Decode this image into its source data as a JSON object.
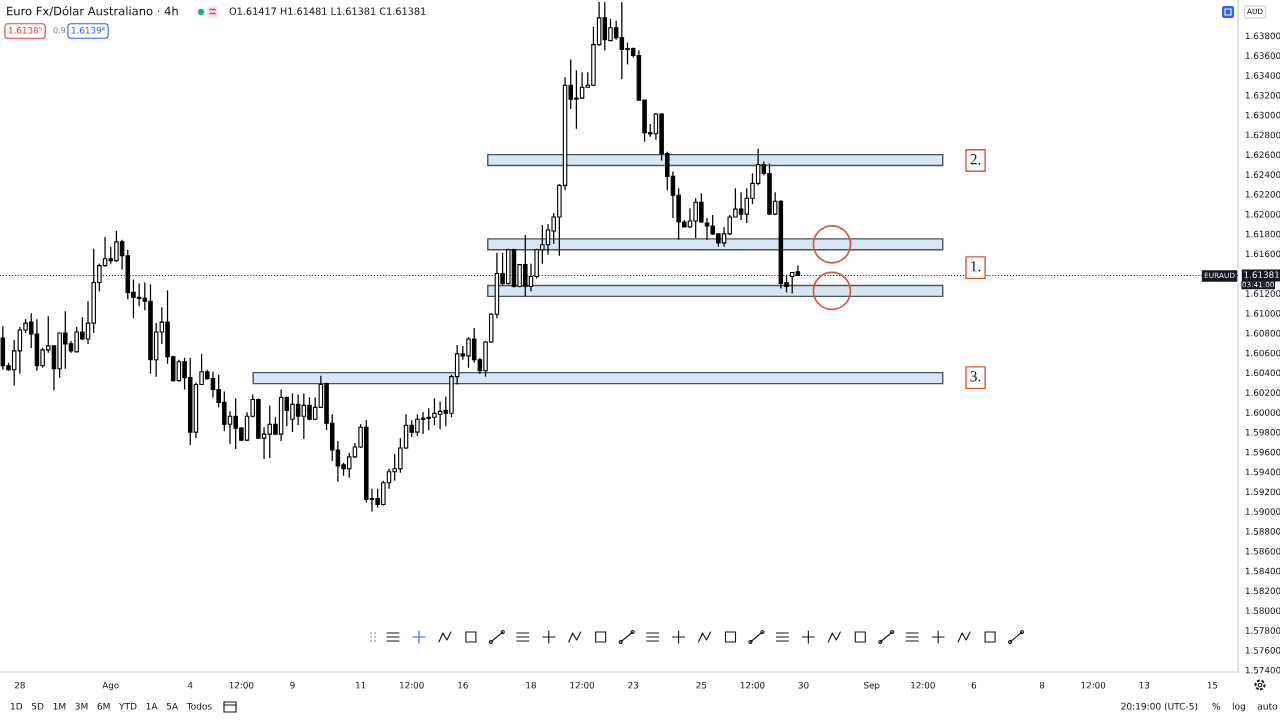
{
  "chart_data": {
    "type": "candlestick",
    "title": "Euro Fx/Dólar Australiano · 4h",
    "subtitle": "O1.61417 H1.61481 L1.61381 C1.61381",
    "color": "#000000",
    "categories": [
      null,
      null,
      null,
      "28",
      null,
      null,
      null,
      null,
      null,
      null,
      null,
      null,
      null,
      null,
      null,
      null,
      null,
      null,
      null,
      "Ago",
      null,
      null,
      null,
      null,
      null,
      null,
      null,
      null,
      null,
      null,
      null,
      null,
      null,
      "4",
      null,
      null,
      null,
      null,
      null,
      null,
      null,
      null,
      "12:00",
      null,
      null,
      null,
      null,
      null,
      null,
      null,
      null,
      "9",
      null,
      null,
      null,
      null,
      null,
      null,
      null,
      null,
      null,
      null,
      null,
      "11",
      null,
      null,
      null,
      null,
      null,
      null,
      null,
      null,
      "12:00",
      null,
      null,
      null,
      null,
      null,
      null,
      null,
      null,
      "16",
      null,
      null,
      null,
      null,
      null,
      null,
      null,
      null,
      null,
      null,
      null,
      "18",
      null,
      null,
      null,
      null,
      null,
      null,
      null,
      null,
      "12:00",
      null,
      null,
      null,
      null,
      null,
      null,
      null,
      null,
      "23",
      null,
      null,
      null,
      null,
      null,
      null,
      null,
      null,
      null,
      null,
      null,
      "25",
      null,
      null,
      null,
      null,
      null,
      null,
      null,
      null,
      "12:00",
      null,
      null,
      null,
      null,
      null,
      null,
      null,
      null,
      "30",
      null,
      null,
      null,
      null,
      null,
      null,
      null,
      null,
      null,
      null,
      null,
      "Sep",
      null,
      null,
      null,
      null,
      null,
      null,
      null,
      null,
      "12:00",
      null,
      null,
      null,
      null,
      null,
      null,
      null,
      null,
      "6",
      null,
      null,
      null,
      null,
      null,
      null,
      null,
      null,
      null,
      null,
      null,
      "8",
      null,
      null,
      null,
      null,
      null,
      null,
      null,
      null,
      "12:00",
      null,
      null,
      null,
      null,
      null,
      null,
      null,
      null,
      "13",
      null,
      null,
      null,
      null,
      null,
      null,
      null,
      null,
      null,
      null,
      null,
      "15",
      null,
      null,
      null,
      null
    ],
    "ohlc": [
      [
        1.6075,
        1.6087,
        1.6043,
        1.6047
      ],
      [
        1.6047,
        1.605,
        1.6042,
        1.6043
      ],
      [
        1.6043,
        1.6073,
        1.6027,
        1.6062
      ],
      [
        1.6062,
        1.6086,
        1.6039,
        1.6083
      ],
      [
        1.6083,
        1.6094,
        1.608,
        1.609
      ],
      [
        1.6091,
        1.61,
        1.6065,
        1.6079
      ],
      [
        1.6079,
        1.6094,
        1.6042,
        1.6047
      ],
      [
        1.6047,
        1.6065,
        1.6045,
        1.6063
      ],
      [
        1.6063,
        1.6097,
        1.606,
        1.6067
      ],
      [
        1.6067,
        1.6067,
        1.6022,
        1.6044
      ],
      [
        1.6044,
        1.608,
        1.6035,
        1.608
      ],
      [
        1.608,
        1.6102,
        1.6044,
        1.6069
      ],
      [
        1.6069,
        1.6072,
        1.606,
        1.6062
      ],
      [
        1.6061,
        1.6086,
        1.6061,
        1.6081
      ],
      [
        1.6081,
        1.6096,
        1.6073,
        1.6074
      ],
      [
        1.6074,
        1.6112,
        1.6069,
        1.609
      ],
      [
        1.609,
        1.6165,
        1.608,
        1.6131
      ],
      [
        1.6131,
        1.615,
        1.6122,
        1.6148
      ],
      [
        1.6148,
        1.6177,
        1.6147,
        1.6155
      ],
      [
        1.6155,
        1.6167,
        1.615,
        1.6153
      ],
      [
        1.6153,
        1.6183,
        1.6152,
        1.6172
      ],
      [
        1.6172,
        1.6174,
        1.6144,
        1.6158
      ],
      [
        1.6158,
        1.6164,
        1.6114,
        1.6121
      ],
      [
        1.6121,
        1.6134,
        1.6095,
        1.6116
      ],
      [
        1.6116,
        1.613,
        1.6107,
        1.6115
      ],
      [
        1.6115,
        1.6131,
        1.6103,
        1.6112
      ],
      [
        1.6112,
        1.6129,
        1.6039,
        1.6053
      ],
      [
        1.6053,
        1.609,
        1.6036,
        1.6081
      ],
      [
        1.6081,
        1.6106,
        1.6069,
        1.6091
      ],
      [
        1.6091,
        1.6123,
        1.6049,
        1.6056
      ],
      [
        1.6056,
        1.6057,
        1.6031,
        1.6032
      ],
      [
        1.6032,
        1.6053,
        1.6031,
        1.6051
      ],
      [
        1.6051,
        1.6055,
        1.6023,
        1.6035
      ],
      [
        1.6035,
        1.6055,
        1.5967,
        1.598
      ],
      [
        1.598,
        1.603,
        1.5974,
        1.6028
      ],
      [
        1.6028,
        1.6059,
        1.6028,
        1.6041
      ],
      [
        1.6041,
        1.6043,
        1.6033,
        1.6034
      ],
      [
        1.6034,
        1.6041,
        1.6015,
        1.6023
      ],
      [
        1.6023,
        1.6038,
        1.6005,
        1.601
      ],
      [
        1.601,
        1.6021,
        1.5981,
        1.5988
      ],
      [
        1.5988,
        1.6001,
        1.5968,
        1.5996
      ],
      [
        1.5996,
        1.6014,
        1.5963,
        1.5984
      ],
      [
        1.5984,
        1.5985,
        1.5971,
        1.5972
      ],
      [
        1.5972,
        1.6,
        1.5971,
        1.5996
      ],
      [
        1.5996,
        1.6018,
        1.5995,
        1.6013
      ],
      [
        1.6013,
        1.6014,
        1.5973,
        1.5974
      ],
      [
        1.5974,
        1.5985,
        1.5953,
        1.5978
      ],
      [
        1.5978,
        1.6007,
        1.5954,
        1.5988
      ],
      [
        1.5988,
        1.5995,
        1.5977,
        1.5978
      ],
      [
        1.5978,
        1.6023,
        1.5971,
        1.6015
      ],
      [
        1.6015,
        1.6016,
        1.5986,
        1.6002
      ],
      [
        1.5993,
        1.6019,
        1.598,
        1.6008
      ],
      [
        1.6008,
        1.6018,
        1.5987,
        1.5996
      ],
      [
        1.5996,
        1.6019,
        1.5973,
        1.6007
      ],
      [
        1.6007,
        1.6015,
        1.5992,
        1.5993
      ],
      [
        1.5993,
        1.6015,
        1.5992,
        1.6005
      ],
      [
        1.6005,
        1.6037,
        1.6005,
        1.6028
      ],
      [
        1.6029,
        1.603,
        1.5982,
        1.5989
      ],
      [
        1.5989,
        1.5998,
        1.5951,
        1.5962
      ],
      [
        1.5962,
        1.5971,
        1.593,
        1.5946
      ],
      [
        1.5947,
        1.5949,
        1.5936,
        1.5943
      ],
      [
        1.5943,
        1.5959,
        1.5934,
        1.5955
      ],
      [
        1.5955,
        1.5969,
        1.5954,
        1.5965
      ],
      [
        1.5965,
        1.5988,
        1.5964,
        1.5985
      ],
      [
        1.5985,
        1.5992,
        1.5909,
        1.5912
      ],
      [
        1.5912,
        1.5923,
        1.59,
        1.5913
      ],
      [
        1.5913,
        1.5923,
        1.5904,
        1.5907
      ],
      [
        1.5907,
        1.5931,
        1.5906,
        1.5929
      ],
      [
        1.5929,
        1.5943,
        1.5923,
        1.594
      ],
      [
        1.594,
        1.5958,
        1.5931,
        1.5943
      ],
      [
        1.5943,
        1.5974,
        1.5939,
        1.5964
      ],
      [
        1.5964,
        1.5998,
        1.5963,
        1.5987
      ],
      [
        1.5987,
        1.5992,
        1.5975,
        1.598
      ],
      [
        1.598,
        1.5998,
        1.5976,
        1.5993
      ],
      [
        1.5994,
        1.6,
        1.5978,
        1.5993
      ],
      [
        1.5995,
        1.6004,
        1.5982,
        1.5994
      ],
      [
        1.5995,
        1.6014,
        1.5987,
        1.5999
      ],
      [
        1.5998,
        1.6011,
        1.5983,
        1.6001
      ],
      [
        1.6002,
        1.6016,
        1.5986,
        1.5999
      ],
      [
        1.5999,
        1.6038,
        1.5995,
        1.6036
      ],
      [
        1.6036,
        1.6068,
        1.6028,
        1.6059
      ],
      [
        1.6059,
        1.6067,
        1.6053,
        1.6057
      ],
      [
        1.6057,
        1.6076,
        1.6045,
        1.6074
      ],
      [
        1.6074,
        1.6085,
        1.605,
        1.6053
      ],
      [
        1.6053,
        1.6055,
        1.6039,
        1.6042
      ],
      [
        1.6042,
        1.6072,
        1.6036,
        1.6071
      ],
      [
        1.6071,
        1.61,
        1.607,
        1.6099
      ],
      [
        1.6099,
        1.6161,
        1.6095,
        1.614
      ],
      [
        1.614,
        1.6161,
        1.6128,
        1.613
      ],
      [
        1.613,
        1.6165,
        1.6129,
        1.6164
      ],
      [
        1.6164,
        1.6165,
        1.6126,
        1.6127
      ],
      [
        1.6127,
        1.6149,
        1.6126,
        1.6149
      ],
      [
        1.6149,
        1.6179,
        1.6117,
        1.6127
      ],
      [
        1.6127,
        1.615,
        1.6122,
        1.6137
      ],
      [
        1.6137,
        1.6165,
        1.6135,
        1.6164
      ],
      [
        1.6164,
        1.6189,
        1.615,
        1.6169
      ],
      [
        1.6169,
        1.619,
        1.6159,
        1.6184
      ],
      [
        1.6183,
        1.6201,
        1.617,
        1.6197
      ],
      [
        1.6197,
        1.623,
        1.6158,
        1.6229
      ],
      [
        1.6229,
        1.6338,
        1.6224,
        1.633
      ],
      [
        1.633,
        1.6356,
        1.6306,
        1.6316
      ],
      [
        1.6316,
        1.6345,
        1.6286,
        1.6317
      ],
      [
        1.6317,
        1.6343,
        1.6316,
        1.6328
      ],
      [
        1.6328,
        1.6343,
        1.6328,
        1.633
      ],
      [
        1.633,
        1.6389,
        1.6329,
        1.6371
      ],
      [
        1.6371,
        1.6414,
        1.637,
        1.6398
      ],
      [
        1.6398,
        1.6414,
        1.6365,
        1.6376
      ],
      [
        1.6375,
        1.6397,
        1.6375,
        1.6388
      ],
      [
        1.6388,
        1.6395,
        1.6376,
        1.6378
      ],
      [
        1.6378,
        1.6414,
        1.6336,
        1.6366
      ],
      [
        1.6366,
        1.6373,
        1.6351,
        1.6367
      ],
      [
        1.6367,
        1.6368,
        1.6358,
        1.636
      ],
      [
        1.636,
        1.6365,
        1.6315,
        1.6315
      ],
      [
        1.6315,
        1.6315,
        1.6273,
        1.6282
      ],
      [
        1.6282,
        1.6291,
        1.6278,
        1.6281
      ],
      [
        1.6281,
        1.6302,
        1.6275,
        1.6301
      ],
      [
        1.6301,
        1.6302,
        1.6254,
        1.6261
      ],
      [
        1.6261,
        1.6263,
        1.6224,
        1.6238
      ],
      [
        1.6238,
        1.6243,
        1.6196,
        1.6219
      ],
      [
        1.6219,
        1.6226,
        1.6174,
        1.6192
      ],
      [
        1.6192,
        1.6194,
        1.6187,
        1.6187
      ],
      [
        1.6187,
        1.6206,
        1.6186,
        1.6193
      ],
      [
        1.6193,
        1.6216,
        1.6176,
        1.6212
      ],
      [
        1.6212,
        1.6221,
        1.6191,
        1.6192
      ],
      [
        1.6191,
        1.6196,
        1.6174,
        1.6188
      ],
      [
        1.6188,
        1.6199,
        1.6179,
        1.618
      ],
      [
        1.618,
        1.618,
        1.6167,
        1.6171
      ],
      [
        1.6171,
        1.6187,
        1.6167,
        1.618
      ],
      [
        1.618,
        1.6199,
        1.6179,
        1.6197
      ],
      [
        1.6197,
        1.6226,
        1.6197,
        1.6205
      ],
      [
        1.6205,
        1.6222,
        1.6194,
        1.62
      ],
      [
        1.62,
        1.6226,
        1.6191,
        1.6216
      ],
      [
        1.6216,
        1.6241,
        1.621,
        1.6231
      ],
      [
        1.6231,
        1.6266,
        1.6229,
        1.625
      ],
      [
        1.625,
        1.6253,
        1.6239,
        1.6241
      ],
      [
        1.6241,
        1.6251,
        1.6199,
        1.62
      ],
      [
        1.62,
        1.6222,
        1.6199,
        1.6213
      ],
      [
        1.6213,
        1.6214,
        1.6125,
        1.613
      ],
      [
        1.6131,
        1.6139,
        1.6121,
        1.6127
      ],
      [
        1.6137,
        1.6141,
        1.612,
        1.6141
      ],
      [
        1.61417,
        1.61481,
        1.61381,
        1.61381
      ],
      null,
      null,
      null,
      null,
      null,
      null,
      null,
      null,
      null,
      null,
      null,
      null,
      null,
      null,
      null,
      null,
      null,
      null,
      null,
      null,
      null,
      null,
      null,
      null,
      null,
      null,
      null,
      null,
      null,
      null,
      null,
      null,
      null,
      null,
      null,
      null,
      null,
      null,
      null,
      null,
      null,
      null,
      null,
      null,
      null,
      null,
      null,
      null,
      null,
      null,
      null,
      null,
      null,
      null,
      null,
      null,
      null,
      null,
      null,
      null,
      null,
      null,
      null,
      null,
      null,
      null,
      null,
      null,
      null,
      null,
      null,
      null,
      null,
      null,
      null,
      null,
      null
    ],
    "ylim": [
      1.5738,
      1.6416
    ],
    "yticks": [
      {
        "value": 1.574,
        "label": "1.57400"
      },
      {
        "value": 1.576,
        "label": "1.57600"
      },
      {
        "value": 1.578,
        "label": "1.57800"
      },
      {
        "value": 1.58,
        "label": "1.58000"
      },
      {
        "value": 1.582,
        "label": "1.58200"
      },
      {
        "value": 1.584,
        "label": "1.58400"
      },
      {
        "value": 1.586,
        "label": "1.58600"
      },
      {
        "value": 1.588,
        "label": "1.58800"
      },
      {
        "value": 1.59,
        "label": "1.59000"
      },
      {
        "value": 1.592,
        "label": "1.59200"
      },
      {
        "value": 1.594,
        "label": "1.59400"
      },
      {
        "value": 1.596,
        "label": "1.59600"
      },
      {
        "value": 1.598,
        "label": "1.59800"
      },
      {
        "value": 1.6,
        "label": "1.60000"
      },
      {
        "value": 1.602,
        "label": "1.60200"
      },
      {
        "value": 1.604,
        "label": "1.60400"
      },
      {
        "value": 1.606,
        "label": "1.60600"
      },
      {
        "value": 1.608,
        "label": "1.60800"
      },
      {
        "value": 1.61,
        "label": "1.61000"
      },
      {
        "value": 1.612,
        "label": "1.61200"
      },
      {
        "value": 1.616,
        "label": "1.61600"
      },
      {
        "value": 1.618,
        "label": "1.61800"
      },
      {
        "value": 1.62,
        "label": "1.62000"
      },
      {
        "value": 1.622,
        "label": "1.62200"
      },
      {
        "value": 1.624,
        "label": "1.62400"
      },
      {
        "value": 1.626,
        "label": "1.62600"
      },
      {
        "value": 1.628,
        "label": "1.62800"
      },
      {
        "value": 1.63,
        "label": "1.63000"
      },
      {
        "value": 1.632,
        "label": "1.63200"
      },
      {
        "value": 1.634,
        "label": "1.63400"
      },
      {
        "value": 1.636,
        "label": "1.63600"
      },
      {
        "value": 1.638,
        "label": "1.63800"
      }
    ],
    "bands": [
      {
        "axis": "y",
        "from": 1.6249,
        "to": 1.626,
        "color": "#d6e6f5"
      },
      {
        "axis": "y",
        "from": 1.6164,
        "to": 1.6175,
        "color": "#d6e6f5"
      },
      {
        "axis": "y",
        "from": 1.6117,
        "to": 1.6128,
        "color": "#d6e6f5"
      },
      {
        "axis": "y",
        "from": 1.6029,
        "to": 1.604,
        "color": "#d6e6f5"
      }
    ],
    "ref_lines": [
      {
        "axis": "y",
        "value": 1.61381,
        "label": "1.61381",
        "color": "#131722",
        "line_style": "dotted"
      }
    ],
    "annotations": [
      "1.6138⁵",
      "0.9",
      "1.6139⁴",
      "AUD",
      "EURAUD",
      "03:41:00",
      {
        "text": "2.",
        "y": 1.6254
      },
      {
        "text": "1.",
        "y": 1.6146
      },
      {
        "text": "3.",
        "y": 1.6035
      },
      "1D   5D   1M   3M   6M   YTD   1A   5A   Todos",
      "20:19:00 (UTC-5)",
      "%    log    auto"
    ]
  }
}
